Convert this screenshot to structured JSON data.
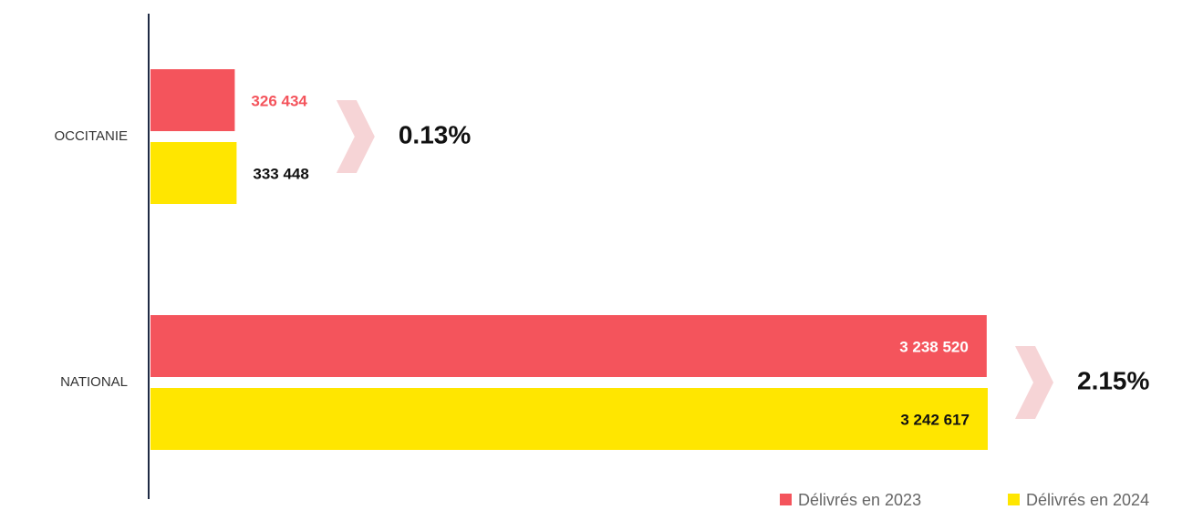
{
  "chart_data": {
    "type": "hbar",
    "categories": [
      "OCCITANIE",
      "NATIONAL"
    ],
    "series": [
      {
        "name": "Délivrés en 2023",
        "color": "#f4545c",
        "values": [
          326434,
          3238520
        ],
        "value_labels": [
          "326 434",
          "3 238 520"
        ]
      },
      {
        "name": "Délivrés en 2024",
        "color": "#ffe600",
        "values": [
          333448,
          3242617
        ],
        "value_labels": [
          "333 448",
          "3 242 617"
        ]
      }
    ],
    "annotations": [
      "0.13%",
      "2.15%"
    ],
    "legend": "bottom-right"
  }
}
